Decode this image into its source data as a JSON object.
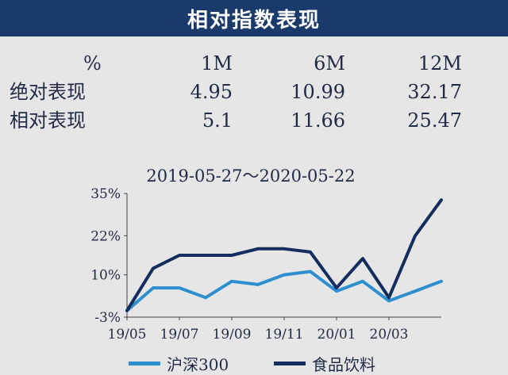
{
  "header": {
    "title": "相对指数表现"
  },
  "performance": {
    "columns": [
      "%",
      "1M",
      "6M",
      "12M"
    ],
    "rows": [
      {
        "label": "绝对表现",
        "values": [
          "4.95",
          "10.99",
          "32.17"
        ]
      },
      {
        "label": "相对表现",
        "values": [
          "5.1",
          "11.66",
          "25.47"
        ]
      }
    ]
  },
  "chart_data": {
    "type": "line",
    "title": "2019-05-27～2020-05-22",
    "xlabel": "",
    "ylabel": "",
    "x": [
      "19/05",
      "19/06",
      "19/07",
      "19/08",
      "19/09",
      "19/10",
      "19/11",
      "19/12",
      "20/01",
      "20/02",
      "20/03",
      "20/04",
      "20/05"
    ],
    "x_tick_labels": [
      "19/05",
      "19/07",
      "19/09",
      "19/11",
      "20/01",
      "20/03"
    ],
    "y_tick_labels": [
      "35%",
      "22%",
      "10%",
      "-3%"
    ],
    "ylim": [
      -3,
      35
    ],
    "grid": false,
    "legend": "bottom",
    "series": [
      {
        "name": "沪深300",
        "color": "#2e8fd0",
        "values": [
          -1,
          6,
          6,
          3,
          8,
          7,
          10,
          11,
          5,
          8,
          2,
          5,
          8
        ]
      },
      {
        "name": "食品饮料",
        "color": "#132e5e",
        "values": [
          -1,
          12,
          16,
          16,
          16,
          18,
          18,
          17,
          6,
          15,
          3,
          22,
          33
        ]
      }
    ]
  }
}
